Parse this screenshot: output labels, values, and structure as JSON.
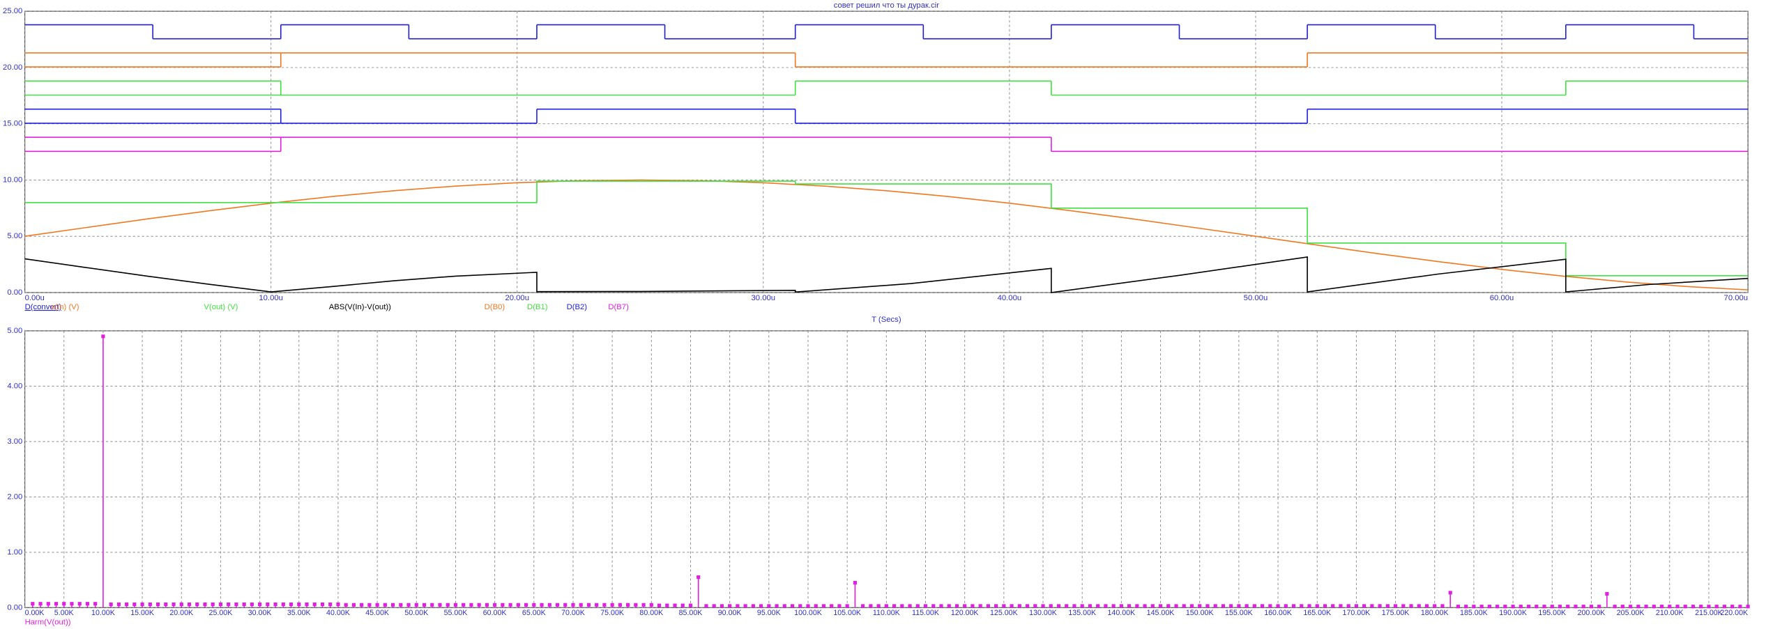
{
  "chart_data": [
    {
      "type": "line",
      "title": "совет решил что ты дурак.cir",
      "xlabel": "T (Secs)",
      "xlim": [
        0,
        70
      ],
      "xticks": [
        {
          "value": 0,
          "label": "0.00u"
        },
        {
          "value": 10,
          "label": "10.00u"
        },
        {
          "value": 20,
          "label": "20.00u"
        },
        {
          "value": 30,
          "label": "30.00u"
        },
        {
          "value": 40,
          "label": "40.00u"
        },
        {
          "value": 50,
          "label": "50.00u"
        },
        {
          "value": 60,
          "label": "60.00u"
        },
        {
          "value": 70,
          "label": "70.00u"
        }
      ],
      "ylim": [
        0,
        25
      ],
      "yticks": [
        {
          "value": 0,
          "label": "0.00"
        },
        {
          "value": 5,
          "label": "5.00"
        },
        {
          "value": 10,
          "label": "10.00"
        },
        {
          "value": 15,
          "label": "15.00"
        },
        {
          "value": 20,
          "label": "20.00"
        },
        {
          "value": 25,
          "label": "25.00"
        }
      ],
      "grid": true,
      "series": [
        {
          "name": "D(convert)",
          "color": "#2020d0",
          "digital": true,
          "x": [
            0,
            5.2,
            10.4,
            15.6,
            20.8,
            26,
            31.3,
            36.5,
            41.7,
            46.9,
            52.1,
            57.3,
            62.6,
            67.8
          ],
          "values": [
            1,
            0,
            1,
            0,
            1,
            0,
            1,
            0,
            1,
            0,
            1,
            0,
            1,
            0
          ]
        },
        {
          "name": "v(In) (V)",
          "color": "#f07820",
          "x": [
            0,
            2.5,
            5,
            7.5,
            10,
            12.5,
            15,
            17.5,
            20,
            22.5,
            25,
            27.5,
            30,
            32.5,
            35,
            37.5,
            40,
            42.5,
            45,
            47.5,
            50,
            52.5,
            55,
            57.5,
            60,
            62.5,
            65,
            67.5,
            70
          ],
          "values": [
            5.0,
            5.78,
            6.55,
            7.27,
            7.94,
            8.54,
            9.05,
            9.46,
            9.76,
            9.94,
            10.0,
            9.94,
            9.76,
            9.46,
            9.05,
            8.54,
            7.94,
            7.27,
            6.55,
            5.78,
            5.0,
            4.22,
            3.45,
            2.73,
            2.06,
            1.46,
            0.95,
            0.54,
            0.24
          ]
        },
        {
          "name": "V(out) (V)",
          "color": "#40e040",
          "x": [
            0,
            20.8,
            20.8,
            31.3,
            31.3,
            41.7,
            41.7,
            52.1,
            52.1,
            62.6,
            62.6,
            70
          ],
          "values": [
            8.0,
            8.0,
            9.9,
            9.9,
            9.65,
            9.65,
            7.5,
            7.5,
            4.4,
            4.4,
            1.5,
            1.5
          ]
        },
        {
          "name": "ABS(V(In)-V(out))",
          "color": "#000000",
          "x": [
            0,
            2.5,
            5,
            7.5,
            10,
            12.5,
            15,
            17.5,
            20.8,
            20.8,
            25,
            31.3,
            31.3,
            36,
            41.7,
            41.7,
            46.9,
            52.1,
            52.1,
            57.4,
            62.6,
            62.6,
            66,
            70
          ],
          "values": [
            3.0,
            2.22,
            1.45,
            0.73,
            0.06,
            0.54,
            1.05,
            1.46,
            1.8,
            0.08,
            0.1,
            0.2,
            0.05,
            0.8,
            2.15,
            0.0,
            1.53,
            3.16,
            0.06,
            1.64,
            2.96,
            0.06,
            0.72,
            1.26
          ]
        },
        {
          "name": "D(B0)",
          "color": "#f07820",
          "digital": true,
          "x": [
            0,
            10.4,
            31.3,
            52.1
          ],
          "values": [
            null,
            1,
            0,
            1
          ]
        },
        {
          "name": "D(B1)",
          "color": "#40e040",
          "digital": true,
          "x": [
            0,
            10.4,
            31.3,
            41.7,
            62.6
          ],
          "values": [
            null,
            0,
            1,
            0,
            1
          ]
        },
        {
          "name": "D(B2)",
          "color": "#2020e0",
          "digital": true,
          "x": [
            0,
            10.4,
            20.8,
            31.3,
            52.1
          ],
          "values": [
            null,
            0,
            1,
            0,
            1
          ]
        },
        {
          "name": "D(B7)",
          "color": "#e020e0",
          "digital": true,
          "x": [
            0,
            10.4,
            41.7
          ],
          "values": [
            null,
            1,
            0
          ]
        }
      ]
    },
    {
      "type": "stem",
      "xlim": [
        0,
        220000
      ],
      "xticks": [
        {
          "value": 0,
          "label": "0.00K"
        },
        {
          "value": 5000,
          "label": "5.00K"
        },
        {
          "value": 10000,
          "label": "10.00K"
        },
        {
          "value": 15000,
          "label": "15.00K"
        },
        {
          "value": 20000,
          "label": "20.00K"
        },
        {
          "value": 25000,
          "label": "25.00K"
        },
        {
          "value": 30000,
          "label": "30.00K"
        },
        {
          "value": 35000,
          "label": "35.00K"
        },
        {
          "value": 40000,
          "label": "40.00K"
        },
        {
          "value": 45000,
          "label": "45.00K"
        },
        {
          "value": 50000,
          "label": "50.00K"
        },
        {
          "value": 55000,
          "label": "55.00K"
        },
        {
          "value": 60000,
          "label": "60.00K"
        },
        {
          "value": 65000,
          "label": "65.00K"
        },
        {
          "value": 70000,
          "label": "70.00K"
        },
        {
          "value": 75000,
          "label": "75.00K"
        },
        {
          "value": 80000,
          "label": "80.00K"
        },
        {
          "value": 85000,
          "label": "85.00K"
        },
        {
          "value": 90000,
          "label": "90.00K"
        },
        {
          "value": 95000,
          "label": "95.00K"
        },
        {
          "value": 100000,
          "label": "100.00K"
        },
        {
          "value": 105000,
          "label": "105.00K"
        },
        {
          "value": 110000,
          "label": "110.00K"
        },
        {
          "value": 115000,
          "label": "115.00K"
        },
        {
          "value": 120000,
          "label": "120.00K"
        },
        {
          "value": 125000,
          "label": "125.00K"
        },
        {
          "value": 130000,
          "label": "130.00K"
        },
        {
          "value": 135000,
          "label": "135.00K"
        },
        {
          "value": 140000,
          "label": "140.00K"
        },
        {
          "value": 145000,
          "label": "145.00K"
        },
        {
          "value": 150000,
          "label": "150.00K"
        },
        {
          "value": 155000,
          "label": "155.00K"
        },
        {
          "value": 160000,
          "label": "160.00K"
        },
        {
          "value": 165000,
          "label": "165.00K"
        },
        {
          "value": 170000,
          "label": "170.00K"
        },
        {
          "value": 175000,
          "label": "175.00K"
        },
        {
          "value": 180000,
          "label": "180.00K"
        },
        {
          "value": 185000,
          "label": "185.00K"
        },
        {
          "value": 190000,
          "label": "190.00K"
        },
        {
          "value": 195000,
          "label": "195.00K"
        },
        {
          "value": 200000,
          "label": "200.00K"
        },
        {
          "value": 205000,
          "label": "205.00K"
        },
        {
          "value": 210000,
          "label": "210.00K"
        },
        {
          "value": 215000,
          "label": "215.00K"
        },
        {
          "value": 220000,
          "label": "220.00K"
        }
      ],
      "ylim": [
        0,
        5
      ],
      "yticks": [
        {
          "value": 0,
          "label": "0.00"
        },
        {
          "value": 1,
          "label": "1.00"
        },
        {
          "value": 2,
          "label": "2.00"
        },
        {
          "value": 3,
          "label": "3.00"
        },
        {
          "value": 4,
          "label": "4.00"
        },
        {
          "value": 5,
          "label": "5.00"
        }
      ],
      "grid": true,
      "series": [
        {
          "name": "Harm(V(out))",
          "color": "#e020e0",
          "x": [
            1000,
            2000,
            3000,
            4000,
            5000,
            6000,
            7000,
            8000,
            9000,
            10000,
            11000,
            12000,
            13000,
            14000,
            15000,
            16000,
            17000,
            18000,
            19000,
            20000,
            21000,
            22000,
            23000,
            24000,
            25000,
            26000,
            27000,
            28000,
            29000,
            30000,
            31000,
            32000,
            33000,
            34000,
            35000,
            36000,
            37000,
            38000,
            39000,
            40000,
            41000,
            42000,
            43000,
            44000,
            45000,
            46000,
            47000,
            48000,
            49000,
            50000,
            51000,
            52000,
            53000,
            54000,
            55000,
            56000,
            57000,
            58000,
            59000,
            60000,
            61000,
            62000,
            63000,
            64000,
            65000,
            66000,
            67000,
            68000,
            69000,
            70000,
            71000,
            72000,
            73000,
            74000,
            75000,
            76000,
            77000,
            78000,
            79000,
            80000,
            81000,
            82000,
            83000,
            84000,
            85000,
            86000,
            87000,
            88000,
            89000,
            90000,
            91000,
            92000,
            93000,
            94000,
            95000,
            96000,
            97000,
            98000,
            99000,
            100000,
            101000,
            102000,
            103000,
            104000,
            105000,
            106000,
            107000,
            108000,
            109000,
            110000,
            111000,
            112000,
            113000,
            114000,
            115000,
            116000,
            117000,
            118000,
            119000,
            120000,
            121000,
            122000,
            123000,
            124000,
            125000,
            126000,
            127000,
            128000,
            129000,
            130000,
            131000,
            132000,
            133000,
            134000,
            135000,
            136000,
            137000,
            138000,
            139000,
            140000,
            141000,
            142000,
            143000,
            144000,
            145000,
            146000,
            147000,
            148000,
            149000,
            150000,
            151000,
            152000,
            153000,
            154000,
            155000,
            156000,
            157000,
            158000,
            159000,
            160000,
            161000,
            162000,
            163000,
            164000,
            165000,
            166000,
            167000,
            168000,
            169000,
            170000,
            171000,
            172000,
            173000,
            174000,
            175000,
            176000,
            177000,
            178000,
            179000,
            180000,
            181000,
            182000,
            183000,
            184000,
            185000,
            186000,
            187000,
            188000,
            189000,
            190000,
            191000,
            192000,
            193000,
            194000,
            195000,
            196000,
            197000,
            198000,
            199000,
            200000,
            201000,
            202000,
            203000,
            204000,
            205000,
            206000,
            207000,
            208000,
            209000,
            210000,
            211000,
            212000,
            213000,
            214000,
            215000,
            216000,
            217000,
            218000,
            219000,
            220000
          ],
          "values": [
            0.07,
            0.07,
            0.07,
            0.07,
            0.07,
            0.07,
            0.07,
            0.07,
            0.07,
            4.9,
            0.06,
            0.06,
            0.06,
            0.06,
            0.06,
            0.06,
            0.06,
            0.06,
            0.06,
            0.06,
            0.06,
            0.06,
            0.06,
            0.06,
            0.06,
            0.06,
            0.06,
            0.06,
            0.06,
            0.06,
            0.06,
            0.06,
            0.06,
            0.06,
            0.06,
            0.06,
            0.06,
            0.06,
            0.06,
            0.06,
            0.05,
            0.05,
            0.05,
            0.05,
            0.05,
            0.05,
            0.05,
            0.05,
            0.05,
            0.05,
            0.05,
            0.05,
            0.05,
            0.05,
            0.05,
            0.05,
            0.05,
            0.05,
            0.05,
            0.05,
            0.05,
            0.05,
            0.05,
            0.05,
            0.05,
            0.05,
            0.05,
            0.05,
            0.05,
            0.05,
            0.05,
            0.05,
            0.05,
            0.05,
            0.05,
            0.05,
            0.05,
            0.05,
            0.05,
            0.05,
            0.04,
            0.04,
            0.04,
            0.04,
            0.04,
            0.55,
            0.03,
            0.03,
            0.03,
            0.03,
            0.03,
            0.03,
            0.03,
            0.03,
            0.03,
            0.03,
            0.03,
            0.03,
            0.03,
            0.03,
            0.03,
            0.03,
            0.03,
            0.03,
            0.03,
            0.45,
            0.03,
            0.03,
            0.03,
            0.03,
            0.03,
            0.03,
            0.03,
            0.03,
            0.03,
            0.03,
            0.03,
            0.03,
            0.03,
            0.03,
            0.03,
            0.03,
            0.03,
            0.03,
            0.03,
            0.03,
            0.03,
            0.03,
            0.03,
            0.03,
            0.03,
            0.03,
            0.03,
            0.03,
            0.03,
            0.03,
            0.03,
            0.03,
            0.03,
            0.03,
            0.03,
            0.03,
            0.03,
            0.03,
            0.03,
            0.03,
            0.03,
            0.03,
            0.03,
            0.03,
            0.03,
            0.03,
            0.03,
            0.03,
            0.03,
            0.03,
            0.03,
            0.03,
            0.03,
            0.03,
            0.03,
            0.03,
            0.03,
            0.03,
            0.03,
            0.03,
            0.03,
            0.03,
            0.03,
            0.03,
            0.03,
            0.03,
            0.03,
            0.03,
            0.03,
            0.03,
            0.03,
            0.03,
            0.03,
            0.03,
            0.03,
            0.27,
            0.02,
            0.02,
            0.02,
            0.02,
            0.02,
            0.02,
            0.02,
            0.02,
            0.02,
            0.02,
            0.02,
            0.02,
            0.02,
            0.02,
            0.02,
            0.02,
            0.02,
            0.02,
            0.02,
            0.25,
            0.02,
            0.02,
            0.02,
            0.02,
            0.02,
            0.02,
            0.02,
            0.02,
            0.02,
            0.02,
            0.02,
            0.02,
            0.02,
            0.02,
            0.02,
            0.02,
            0.02,
            0.02
          ]
        }
      ]
    }
  ]
}
